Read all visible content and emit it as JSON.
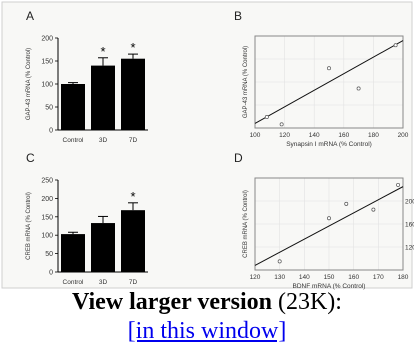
{
  "caption": {
    "lead": "View larger version",
    "size": "(23K):",
    "link": "[in this window]"
  },
  "chart_data": [
    {
      "panel": "A",
      "type": "bar",
      "ylabel": "GAP-43 mRNA (% Control)",
      "ylim": [
        0,
        200
      ],
      "yticks": [
        0,
        50,
        100,
        150,
        200
      ],
      "categories": [
        "Control",
        "3D",
        "7D"
      ],
      "values": [
        100,
        140,
        155
      ],
      "errors": [
        3,
        17,
        10
      ],
      "significance": [
        "",
        "*",
        "*"
      ]
    },
    {
      "panel": "B",
      "type": "scatter",
      "xlabel": "Synapsin I mRNA (% Control)",
      "ylabel": "GAP-43 mRNA (% Control)",
      "xlim": [
        100,
        200
      ],
      "ylim": [
        100,
        200
      ],
      "xticks": [
        100,
        120,
        140,
        160,
        180,
        200
      ],
      "yticks": [],
      "points": [
        [
          108,
          112
        ],
        [
          118,
          104
        ],
        [
          150,
          165
        ],
        [
          170,
          143
        ],
        [
          195,
          190
        ]
      ],
      "fit_line": [
        [
          100,
          105
        ],
        [
          200,
          195
        ]
      ],
      "grid": true
    },
    {
      "panel": "C",
      "type": "bar",
      "ylabel": "CREB mRNA (% Control)",
      "ylim": [
        0,
        250
      ],
      "yticks": [
        0,
        50,
        100,
        150,
        200,
        250
      ],
      "categories": [
        "Control",
        "3D",
        "7D"
      ],
      "values": [
        103,
        133,
        168
      ],
      "errors": [
        5,
        18,
        20
      ],
      "significance": [
        "",
        "",
        "*"
      ]
    },
    {
      "panel": "D",
      "type": "scatter",
      "xlabel": "BDNF mRNA (% Control)",
      "ylabel": "CREB mRNA (% Control)",
      "xlim": [
        120,
        180
      ],
      "ylim": [
        80,
        240
      ],
      "xticks": [
        120,
        130,
        140,
        150,
        160,
        170,
        180
      ],
      "yticks": [
        120,
        160,
        200
      ],
      "points": [
        [
          130,
          95
        ],
        [
          150,
          170
        ],
        [
          157,
          195
        ],
        [
          168,
          185
        ],
        [
          178,
          228
        ]
      ],
      "fit_line": [
        [
          120,
          88
        ],
        [
          180,
          225
        ]
      ],
      "grid": true
    }
  ]
}
